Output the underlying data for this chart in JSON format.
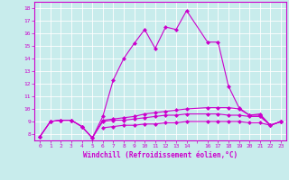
{
  "xlabel": "Windchill (Refroidissement éolien,°C)",
  "bg_color": "#c8ecec",
  "line_color": "#cc00cc",
  "xlim": [
    -0.5,
    23.5
  ],
  "ylim": [
    7.5,
    18.5
  ],
  "yticks": [
    8,
    9,
    10,
    11,
    12,
    13,
    14,
    15,
    16,
    17,
    18
  ],
  "xtick_labels": [
    "0",
    "1",
    "2",
    "3",
    "4",
    "5",
    "6",
    "7",
    "8",
    "9",
    "10",
    "11",
    "12",
    "13",
    "14",
    "",
    "16",
    "17",
    "18",
    "19",
    "20",
    "21",
    "22",
    "23"
  ],
  "xtick_positions": [
    0,
    1,
    2,
    3,
    4,
    5,
    6,
    7,
    8,
    9,
    10,
    11,
    12,
    13,
    14,
    15,
    16,
    17,
    18,
    19,
    20,
    21,
    22,
    23
  ],
  "series": [
    {
      "x": [
        0,
        1,
        2,
        3,
        4,
        5,
        6,
        7,
        8,
        9,
        10,
        11,
        12,
        13,
        14,
        16,
        17,
        18,
        19,
        20,
        21,
        22,
        23
      ],
      "y": [
        7.8,
        9.0,
        9.1,
        9.1,
        8.6,
        7.7,
        9.4,
        12.3,
        14.0,
        15.2,
        16.3,
        14.8,
        16.5,
        16.3,
        17.8,
        15.3,
        15.3,
        11.8,
        10.1,
        9.5,
        9.6,
        8.7,
        9.0
      ]
    },
    {
      "x": [
        0,
        1,
        2,
        3,
        4,
        5,
        6,
        7,
        8,
        9,
        10,
        11,
        12,
        13,
        14,
        16,
        17,
        18,
        19,
        20,
        21,
        22,
        23
      ],
      "y": [
        7.8,
        9.0,
        9.1,
        9.1,
        8.6,
        7.7,
        9.1,
        9.2,
        9.3,
        9.4,
        9.6,
        9.7,
        9.8,
        9.9,
        10.0,
        10.1,
        10.1,
        10.1,
        10.0,
        9.5,
        9.5,
        8.7,
        9.0
      ]
    },
    {
      "x": [
        0,
        1,
        2,
        3,
        4,
        5,
        6,
        7,
        8,
        9,
        10,
        11,
        12,
        13,
        14,
        16,
        17,
        18,
        19,
        20,
        21,
        22,
        23
      ],
      "y": [
        7.8,
        9.0,
        9.1,
        9.1,
        8.6,
        7.7,
        9.0,
        9.1,
        9.1,
        9.2,
        9.3,
        9.4,
        9.5,
        9.5,
        9.6,
        9.6,
        9.6,
        9.5,
        9.5,
        9.4,
        9.4,
        8.7,
        9.0
      ]
    },
    {
      "x": [
        6,
        7,
        8,
        9,
        10,
        11,
        12,
        13,
        14,
        16,
        17,
        18,
        19,
        20,
        21,
        22,
        23
      ],
      "y": [
        8.5,
        8.6,
        8.7,
        8.7,
        8.8,
        8.8,
        8.9,
        8.9,
        9.0,
        9.0,
        9.0,
        9.0,
        9.0,
        8.9,
        8.9,
        8.7,
        9.0
      ]
    }
  ]
}
